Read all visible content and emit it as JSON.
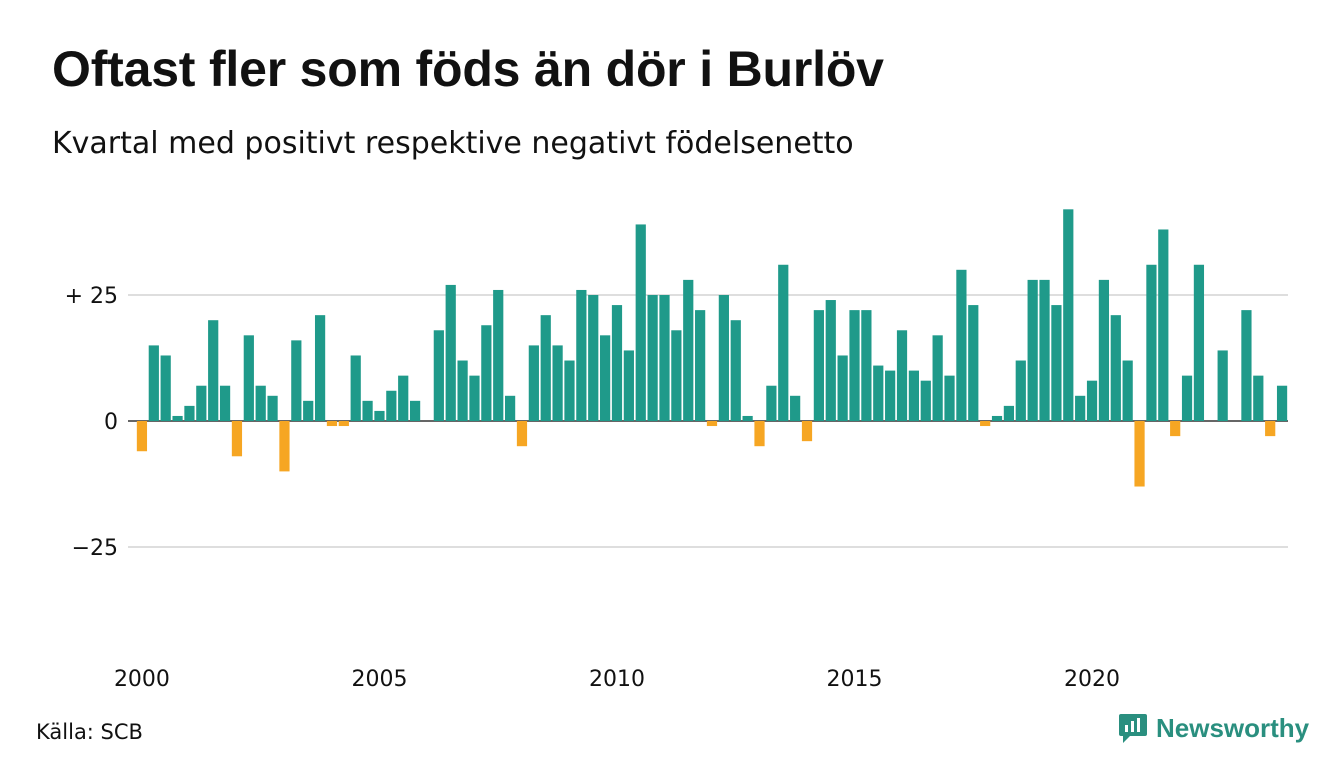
{
  "title": "Oftast fler som föds än dör i Burlöv",
  "subtitle": "Kvartal med positivt respektive negativt födelsenetto",
  "source": "Källa: SCB",
  "brand": {
    "name": "Newsworthy",
    "icon": "newsworthy-logo-icon"
  },
  "colors": {
    "positive": "#1f9a8a",
    "negative": "#f6a623",
    "grid": "#dedede",
    "zero": "#333333"
  },
  "chart_data": {
    "type": "bar",
    "x_unit": "quarter",
    "x_start": "2000 Q1",
    "xticks": [
      "2000",
      "2005",
      "2010",
      "2015",
      "2020"
    ],
    "yticks": [
      {
        "value": 25,
        "label": "+ 25"
      },
      {
        "value": 0,
        "label": "0"
      },
      {
        "value": -25,
        "label": "−25"
      }
    ],
    "ylim": [
      -45,
      46
    ],
    "grid": true,
    "values": [
      -6,
      15,
      13,
      1,
      3,
      7,
      20,
      7,
      -7,
      17,
      7,
      5,
      -10,
      16,
      4,
      21,
      -1,
      -1,
      13,
      4,
      2,
      6,
      9,
      4,
      0,
      18,
      27,
      12,
      9,
      19,
      26,
      5,
      -5,
      15,
      21,
      15,
      12,
      26,
      25,
      17,
      23,
      14,
      39,
      25,
      25,
      18,
      28,
      22,
      -1,
      25,
      20,
      1,
      -5,
      7,
      31,
      5,
      -4,
      22,
      24,
      13,
      22,
      22,
      11,
      10,
      18,
      10,
      8,
      17,
      9,
      30,
      23,
      -1,
      1,
      3,
      12,
      28,
      28,
      23,
      42,
      5,
      8,
      28,
      21,
      12,
      -13,
      31,
      38,
      -3,
      9,
      31,
      0,
      14,
      0,
      22,
      9,
      -3,
      7
    ]
  }
}
